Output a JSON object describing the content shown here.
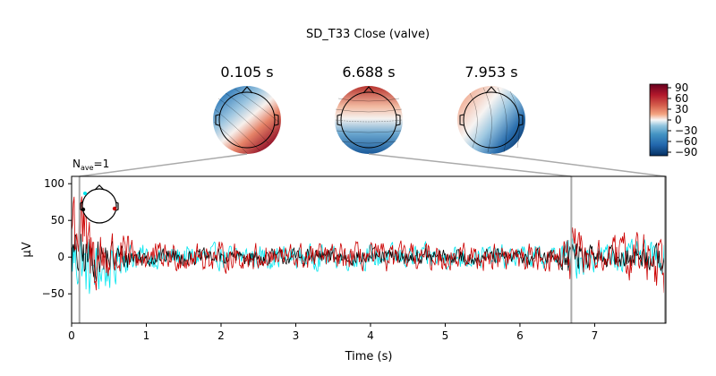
{
  "figure": {
    "title": "SD_T33 Close (valve)",
    "nave_text": "N",
    "nave_sub": "ave",
    "nave_value": "=1"
  },
  "topomaps": [
    {
      "time_label": "0.105 s",
      "time": 0.105,
      "pattern": "frontal-negative-posterior-positive"
    },
    {
      "time_label": "6.688 s",
      "time": 6.688,
      "pattern": "frontal-positive-posterior-negative"
    },
    {
      "time_label": "7.953 s",
      "time": 7.953,
      "pattern": "left-positive-right-negative"
    }
  ],
  "colorbar": {
    "ticks": [
      "90",
      "60",
      "30",
      "0",
      "−30",
      "−60",
      "−90"
    ],
    "tick_values": [
      90,
      60,
      30,
      0,
      -30,
      -60,
      -90
    ],
    "range": [
      -100,
      100
    ],
    "colormap": "RdBu_r",
    "colors": {
      "max": "#67001f",
      "high": "#d6604d",
      "mid": "#f7f7f7",
      "low": "#4393c3",
      "min": "#053061"
    }
  },
  "chart_data": {
    "type": "line",
    "xlabel": "Time (s)",
    "ylabel": "µV",
    "xlim": [
      0,
      7.953
    ],
    "ylim": [
      -90,
      110
    ],
    "x_ticks": [
      0,
      1,
      2,
      3,
      4,
      5,
      6,
      7
    ],
    "y_ticks": [
      -50,
      0,
      50,
      100
    ],
    "x_tick_labels": [
      "0",
      "1",
      "2",
      "3",
      "4",
      "5",
      "6",
      "7"
    ],
    "y_tick_labels": [
      "−50",
      "0",
      "50",
      "100"
    ],
    "vlines": [
      0.105,
      6.688,
      7.953
    ],
    "series": [
      {
        "color": "#00e5ee",
        "samples": 700,
        "amplitude": 14,
        "envelope": [
          [
            0,
            70
          ],
          [
            0.2,
            60
          ],
          [
            0.6,
            30
          ],
          [
            1.0,
            22
          ],
          [
            6.5,
            22
          ],
          [
            6.7,
            45
          ],
          [
            7.0,
            25
          ],
          [
            7.95,
            30
          ]
        ]
      },
      {
        "color": "#000000",
        "samples": 700,
        "amplitude": 10,
        "envelope": [
          [
            0,
            50
          ],
          [
            0.3,
            40
          ],
          [
            0.8,
            22
          ],
          [
            1.2,
            15
          ],
          [
            6.5,
            15
          ],
          [
            6.7,
            40
          ],
          [
            7.0,
            18
          ],
          [
            7.95,
            25
          ]
        ]
      },
      {
        "color": "#cc0000",
        "samples": 700,
        "amplitude": 12,
        "envelope": [
          [
            0,
            100
          ],
          [
            0.2,
            80
          ],
          [
            0.6,
            45
          ],
          [
            1.0,
            25
          ],
          [
            6.5,
            25
          ],
          [
            6.7,
            55
          ],
          [
            7.0,
            28
          ],
          [
            7.9,
            60
          ],
          [
            7.95,
            80
          ]
        ]
      }
    ]
  }
}
